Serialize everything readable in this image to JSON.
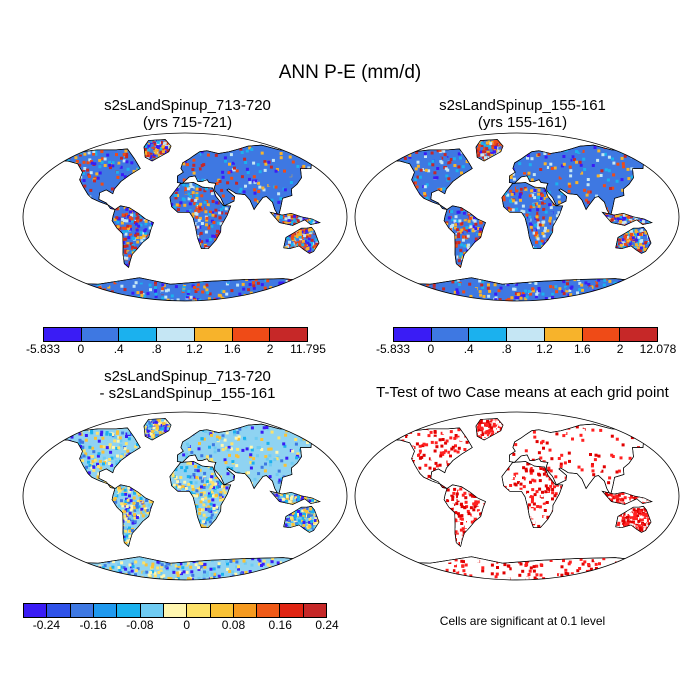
{
  "title": "ANN P-E (mm/d)",
  "panels": [
    {
      "title_line1": "s2sLandSpinup_713-720",
      "title_line2": "(yrs 715-721)"
    },
    {
      "title_line1": "s2sLandSpinup_155-161",
      "title_line2": "(yrs 155-161)"
    },
    {
      "title_line1": "s2sLandSpinup_713-720",
      "title_line2": "- s2sLandSpinup_155-161"
    },
    {
      "title_line1": "T-Test of two Case means at each grid point",
      "title_line2": ""
    }
  ],
  "colorbars": [
    {
      "colors": [
        "#3a1cf5",
        "#3e78e2",
        "#1bb1ee",
        "#c5e6f4",
        "#f7b32b",
        "#ef4b17",
        "#c62828"
      ],
      "labels": [
        "-5.833",
        "0",
        ".4",
        ".8",
        "1.2",
        "1.6",
        "2",
        "11.795"
      ]
    },
    {
      "colors": [
        "#3a1cf5",
        "#3e78e2",
        "#1bb1ee",
        "#c5e6f4",
        "#f7b32b",
        "#ef4b17",
        "#c62828"
      ],
      "labels": [
        "-5.833",
        "0",
        ".4",
        ".8",
        "1.2",
        "1.6",
        "2",
        "12.078"
      ]
    },
    {
      "colors": [
        "#3a1cf5",
        "#2f52e8",
        "#3e78e2",
        "#1f99ee",
        "#1bb1ee",
        "#6fcbf2",
        "#fff6b0",
        "#fde26a",
        "#f9c236",
        "#f59a1f",
        "#ef5a17",
        "#e02412",
        "#c62828"
      ],
      "labels": [
        "-0.24",
        "-0.16",
        "-0.08",
        "0",
        "0.08",
        "0.16",
        "0.24"
      ]
    }
  ],
  "ttest_note": "Cells are significant at 0.1 level"
}
